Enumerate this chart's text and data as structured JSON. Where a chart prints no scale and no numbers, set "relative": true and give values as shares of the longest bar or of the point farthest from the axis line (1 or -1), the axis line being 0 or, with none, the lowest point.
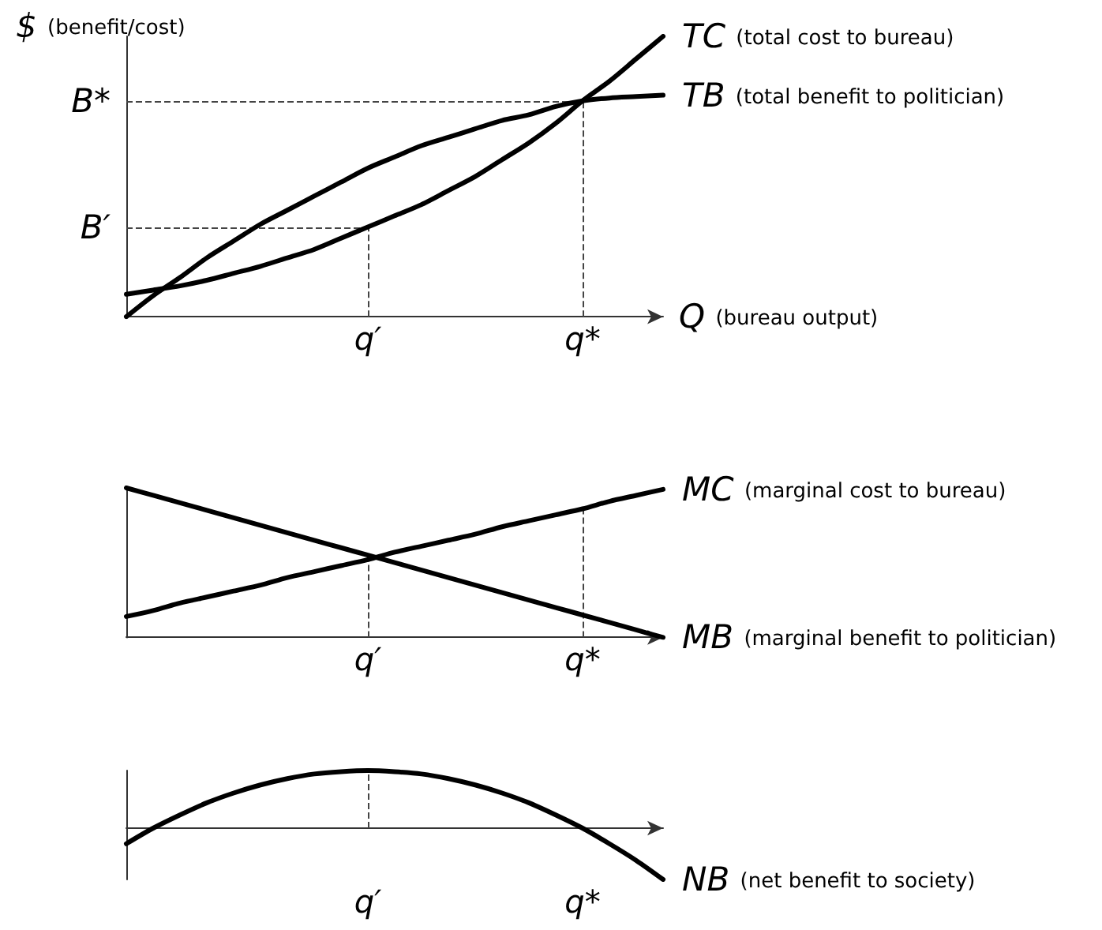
{
  "chart_data": [
    {
      "type": "line",
      "relative": true,
      "ylabel": "$ (benefit/cost)",
      "xlabel": "Q (bureau output)",
      "tick_labels": "x",
      "categories": [
        null,
        null,
        null,
        null,
        null,
        null,
        null,
        null,
        null,
        "q′",
        null,
        null,
        null,
        null,
        null,
        null,
        null,
        "q*",
        null,
        null,
        null
      ],
      "series": [
        {
          "name": "TC (total cost to bureau)",
          "color": "#000000",
          "values": [
            0.08,
            0.095,
            0.11,
            0.13,
            0.155,
            0.18,
            0.21,
            0.24,
            0.28,
            0.32,
            0.36,
            0.4,
            0.45,
            0.5,
            0.56,
            0.62,
            0.69,
            0.77,
            0.84,
            0.92,
            1
          ]
        },
        {
          "name": "TB (total benefit to politician)",
          "color": "#000000",
          "values": [
            0,
            0.075,
            0.14,
            0.21,
            0.27,
            0.33,
            0.38,
            0.43,
            0.48,
            0.53,
            0.57,
            0.61,
            0.64,
            0.67,
            0.7,
            0.72,
            0.75,
            0.77,
            0.78,
            0.785,
            0.79
          ]
        }
      ],
      "ref_lines": [
        {
          "axis": "y",
          "value": 0.32,
          "label": "B′"
        },
        {
          "axis": "y",
          "value": 0.77,
          "label": "B*"
        },
        {
          "axis": "x",
          "value": "q′",
          "label": null
        },
        {
          "axis": "x",
          "value": "q*",
          "label": null
        }
      ]
    },
    {
      "type": "line",
      "relative": true,
      "tick_labels": "x",
      "categories": [
        null,
        null,
        null,
        null,
        null,
        null,
        null,
        null,
        null,
        "q′",
        null,
        null,
        null,
        null,
        null,
        null,
        null,
        "q*",
        null,
        null,
        null
      ],
      "series": [
        {
          "name": "MC (marginal cost to bureau)",
          "color": "#000000",
          "values": [
            0.14,
            0.18,
            0.23,
            0.27,
            0.31,
            0.35,
            0.4,
            0.44,
            0.48,
            0.52,
            0.57,
            0.61,
            0.65,
            0.69,
            0.74,
            0.78,
            0.82,
            0.86,
            0.91,
            0.95,
            0.99
          ]
        },
        {
          "name": "MB (marginal benefit to politician)",
          "color": "#000000",
          "values": [
            1,
            0.95,
            0.9,
            0.85,
            0.8,
            0.75,
            0.7,
            0.65,
            0.6,
            0.55,
            0.5,
            0.45,
            0.4,
            0.35,
            0.3,
            0.25,
            0.2,
            0.15,
            0.1,
            0.05,
            0
          ]
        }
      ],
      "ref_lines": [
        {
          "axis": "x",
          "value": "q′",
          "label": null
        },
        {
          "axis": "x",
          "value": "q*",
          "label": null
        }
      ]
    },
    {
      "type": "line",
      "relative": true,
      "tick_labels": "x",
      "categories": [
        null,
        null,
        null,
        null,
        null,
        null,
        null,
        null,
        null,
        "q′",
        null,
        null,
        null,
        null,
        null,
        null,
        null,
        "q*",
        null,
        null,
        null
      ],
      "series": [
        {
          "name": "NB (net benefit to society)",
          "color": "#000000",
          "values": [
            -0.27,
            0,
            0.23,
            0.44,
            0.61,
            0.75,
            0.86,
            0.94,
            0.98,
            1,
            0.98,
            0.94,
            0.86,
            0.75,
            0.61,
            0.44,
            0.23,
            0,
            -0.27,
            -0.56,
            -0.89
          ]
        }
      ],
      "ref_lines": [
        {
          "axis": "x",
          "value": "q′",
          "label": null
        }
      ]
    }
  ]
}
